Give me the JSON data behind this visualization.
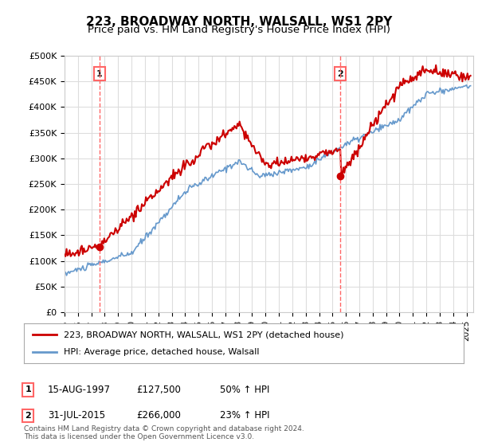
{
  "title1": "223, BROADWAY NORTH, WALSALL, WS1 2PY",
  "title2": "Price paid vs. HM Land Registry's House Price Index (HPI)",
  "ylabel_ticks": [
    "£0",
    "£50K",
    "£100K",
    "£150K",
    "£200K",
    "£250K",
    "£300K",
    "£350K",
    "£400K",
    "£450K",
    "£500K"
  ],
  "ytick_values": [
    0,
    50000,
    100000,
    150000,
    200000,
    250000,
    300000,
    350000,
    400000,
    450000,
    500000
  ],
  "ylim": [
    0,
    500000
  ],
  "xlim_start": 1995.0,
  "xlim_end": 2025.5,
  "sale1_x": 1997.617,
  "sale1_y": 127500,
  "sale2_x": 2015.581,
  "sale2_y": 266000,
  "sale1_label": "1",
  "sale2_label": "2",
  "vline_color": "#ff6666",
  "marker_color": "#cc0000",
  "hpi_line_color": "#6699cc",
  "price_line_color": "#cc0000",
  "legend_line1": "223, BROADWAY NORTH, WALSALL, WS1 2PY (detached house)",
  "legend_line2": "HPI: Average price, detached house, Walsall",
  "table_row1": [
    "1",
    "15-AUG-1997",
    "£127,500",
    "50% ↑ HPI"
  ],
  "table_row2": [
    "2",
    "31-JUL-2015",
    "£266,000",
    "23% ↑ HPI"
  ],
  "footnote": "Contains HM Land Registry data © Crown copyright and database right 2024.\nThis data is licensed under the Open Government Licence v3.0.",
  "background_color": "#ffffff",
  "grid_color": "#dddddd",
  "title_fontsize": 11,
  "subtitle_fontsize": 9.5
}
